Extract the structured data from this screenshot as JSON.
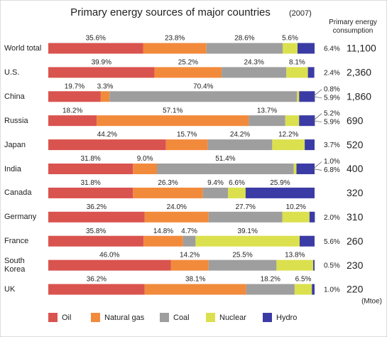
{
  "chart_data": {
    "type": "bar",
    "orientation": "horizontal",
    "stacked": true,
    "title": "Primary energy sources of major countries",
    "subtitle": "(2007)",
    "xlim": [
      0,
      100
    ],
    "categories": [
      "World total",
      "U.S.",
      "China",
      "Russia",
      "Japan",
      "India",
      "Canada",
      "Germany",
      "France",
      "South Korea",
      "UK"
    ],
    "series": [
      {
        "name": "Oil",
        "color": "#d9534f",
        "values": [
          35.6,
          39.9,
          19.7,
          18.2,
          44.2,
          31.8,
          31.8,
          36.2,
          35.8,
          46.0,
          36.2
        ],
        "value_labels": [
          "35.6%",
          "39.9%",
          "19.7%",
          "18.2%",
          "44.2%",
          "31.8%",
          "31.8%",
          "36.2%",
          "35.8%",
          "46.0%",
          "36.2%"
        ]
      },
      {
        "name": "Natural gas",
        "color": "#f28a3c",
        "values": [
          23.8,
          25.2,
          3.3,
          57.1,
          15.7,
          9.0,
          26.3,
          24.0,
          14.8,
          14.2,
          38.1
        ],
        "value_labels": [
          "23.8%",
          "25.2%",
          "3.3%",
          "57.1%",
          "15.7%",
          "9.0%",
          "26.3%",
          "24.0%",
          "14.8%",
          "14.2%",
          "38.1%"
        ]
      },
      {
        "name": "Coal",
        "color": "#9e9e9e",
        "values": [
          28.6,
          24.3,
          70.4,
          13.7,
          24.2,
          51.4,
          9.4,
          27.7,
          4.7,
          25.5,
          18.2
        ],
        "value_labels": [
          "28.6%",
          "24.3%",
          "70.4%",
          "13.7%",
          "24.2%",
          "51.4%",
          "9.4%",
          "27.7%",
          "4.7%",
          "25.5%",
          "18.2%"
        ]
      },
      {
        "name": "Nuclear",
        "color": "#dbe04e",
        "values": [
          5.6,
          8.1,
          0.8,
          5.2,
          12.2,
          1.0,
          6.6,
          10.2,
          39.1,
          13.8,
          6.5
        ],
        "value_labels": [
          "5.6%",
          "8.1%",
          "0.8%",
          "5.2%",
          "12.2%",
          "1.0%",
          "6.6%",
          "10.2%",
          "39.1%",
          "13.8%",
          "6.5%"
        ]
      },
      {
        "name": "Hydro",
        "color": "#3b3ba6",
        "values": [
          6.4,
          2.4,
          5.9,
          5.9,
          3.7,
          6.8,
          25.9,
          2.0,
          5.6,
          0.5,
          1.0
        ],
        "value_labels": [
          "6.4%",
          "2.4%",
          "5.9%",
          "5.9%",
          "3.7%",
          "6.8%",
          "25.9%",
          "2.0%",
          "5.6%",
          "0.5%",
          "1.0%"
        ]
      }
    ],
    "consumption": {
      "label": "Primary energy consumption",
      "unit": "(Mtoe)",
      "values": [
        11100,
        2360,
        1860,
        690,
        520,
        400,
        320,
        310,
        260,
        230,
        220
      ],
      "value_labels": [
        "11,100",
        "2,360",
        "1,860",
        "690",
        "520",
        "400",
        "320",
        "310",
        "260",
        "230",
        "220"
      ]
    }
  }
}
